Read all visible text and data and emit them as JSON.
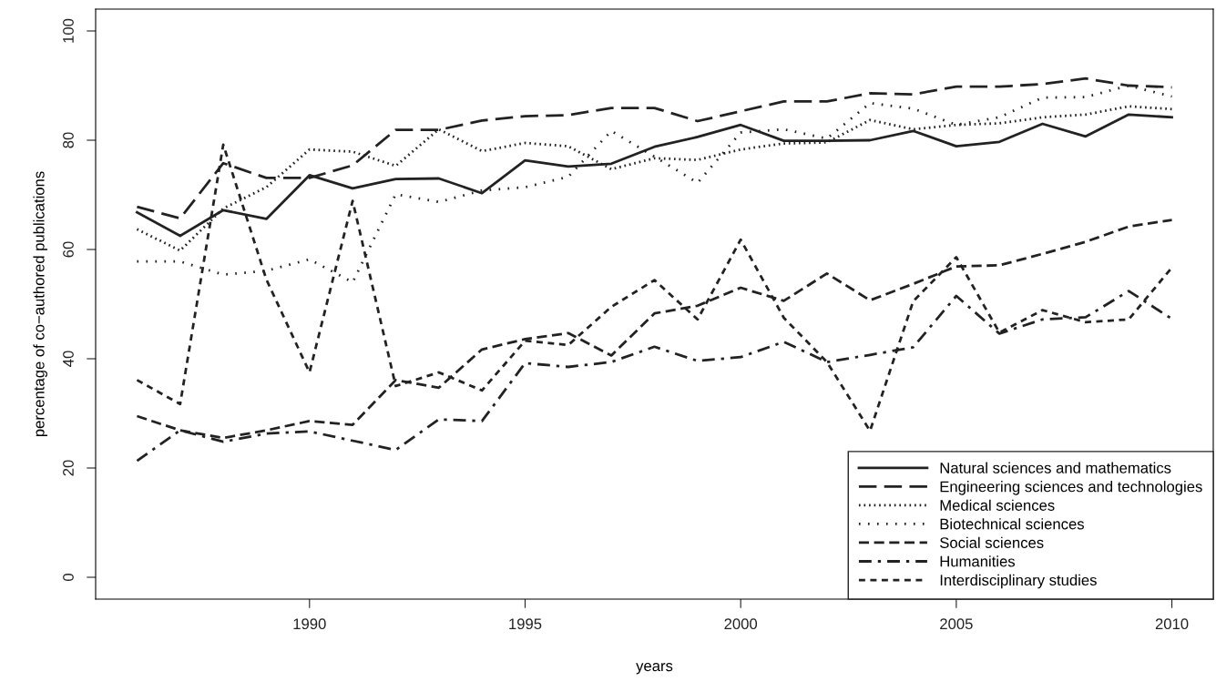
{
  "chart_data": {
    "type": "line",
    "xlabel": "years",
    "ylabel": "percentage of co−authored publications",
    "x": [
      1986,
      1987,
      1988,
      1989,
      1990,
      1991,
      1992,
      1993,
      1994,
      1995,
      1996,
      1997,
      1998,
      1999,
      2000,
      2001,
      2002,
      2003,
      2004,
      2005,
      2006,
      2007,
      2008,
      2009,
      2010
    ],
    "xlim": [
      1985.04,
      2010.96
    ],
    "xticks": [
      1990,
      1995,
      2000,
      2005,
      2010
    ],
    "ylim": [
      -4,
      104
    ],
    "yticks": [
      0,
      20,
      40,
      60,
      80,
      100
    ],
    "grid": false,
    "legend": "bottom right",
    "marker": "none",
    "series": [
      {
        "name": "Natural sciences and mathematics",
        "color": "#222222",
        "line_style": "solid",
        "values": [
          66.8,
          62.5,
          67.2,
          65.6,
          73.6,
          71.2,
          72.9,
          73.0,
          70.3,
          76.3,
          75.2,
          75.7,
          78.8,
          80.6,
          82.8,
          79.9,
          79.9,
          80.0,
          81.7,
          78.9,
          79.7,
          83.0,
          80.7,
          84.7,
          84.2
        ]
      },
      {
        "name": "Engineering sciences and technologies",
        "color": "#222222",
        "line_style": "longdash",
        "values": [
          67.8,
          65.7,
          75.8,
          73.1,
          73.1,
          75.4,
          81.9,
          81.9,
          83.6,
          84.4,
          84.6,
          85.9,
          85.9,
          83.5,
          85.3,
          87.1,
          87.1,
          88.6,
          88.4,
          89.8,
          89.8,
          90.3,
          91.3,
          90.0,
          89.7
        ]
      },
      {
        "name": "Medical sciences",
        "color": "#222222",
        "line_style": "dotted",
        "values": [
          63.7,
          59.8,
          67.5,
          71.4,
          78.3,
          77.9,
          75.3,
          82.0,
          78.0,
          79.5,
          78.9,
          74.7,
          76.7,
          76.4,
          78.3,
          79.4,
          79.6,
          83.7,
          82.0,
          82.8,
          83.1,
          84.2,
          84.7,
          86.2,
          85.7
        ]
      },
      {
        "name": "Biotechnical sciences",
        "color": "#222222",
        "line_style": "sparsedotted",
        "values": [
          57.8,
          57.8,
          55.4,
          56.1,
          58.2,
          54.0,
          70.1,
          68.7,
          70.8,
          71.4,
          73.3,
          81.7,
          77.0,
          72.2,
          81.4,
          82.0,
          80.3,
          86.8,
          85.8,
          82.8,
          84.2,
          87.8,
          87.9,
          90.0,
          88.0
        ]
      },
      {
        "name": "Social sciences",
        "color": "#222222",
        "line_style": "dashed",
        "values": [
          29.5,
          26.9,
          25.5,
          26.9,
          28.6,
          27.9,
          36.1,
          34.7,
          41.7,
          43.6,
          44.7,
          40.6,
          48.3,
          49.7,
          53.0,
          50.6,
          55.6,
          50.7,
          53.7,
          56.9,
          57.1,
          59.2,
          61.4,
          64.2,
          65.4
        ]
      },
      {
        "name": "Humanities",
        "color": "#222222",
        "line_style": "twodash",
        "values": [
          21.3,
          26.9,
          24.8,
          26.3,
          26.7,
          25.0,
          23.3,
          28.9,
          28.6,
          39.2,
          38.5,
          39.4,
          42.2,
          39.6,
          40.3,
          43.1,
          39.4,
          40.7,
          42.1,
          51.5,
          44.6,
          47.2,
          47.6,
          52.4,
          47.3
        ]
      },
      {
        "name": "Interdisciplinary studies",
        "color": "#222222",
        "line_style": "shortdash",
        "values": [
          36.1,
          31.7,
          79.2,
          54.5,
          37.5,
          68.9,
          35.0,
          37.5,
          34.2,
          43.3,
          42.5,
          49.5,
          54.4,
          47.2,
          61.8,
          47.5,
          39.4,
          26.8,
          50.5,
          58.6,
          44.8,
          48.9,
          46.7,
          47.2,
          56.7
        ]
      }
    ]
  }
}
